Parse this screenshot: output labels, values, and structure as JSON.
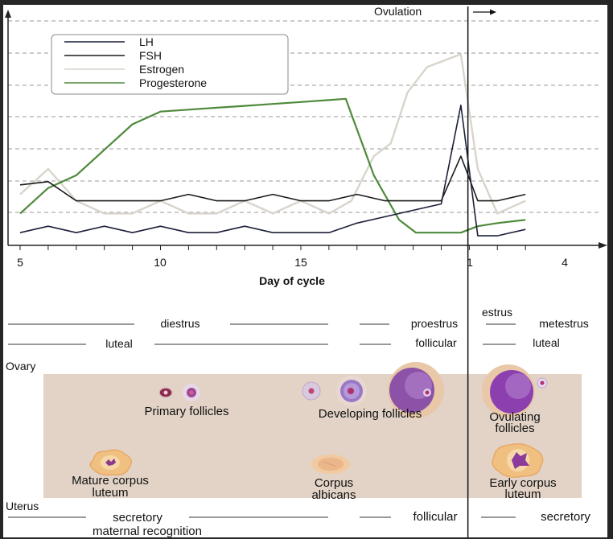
{
  "legend": {
    "items": [
      {
        "label": "LH",
        "color": "#1c1f3a"
      },
      {
        "label": "FSH",
        "color": "#1a1a1a"
      },
      {
        "label": "Estrogen",
        "color": "#d9d4cc"
      },
      {
        "label": "Progesterone",
        "color": "#4f8a3c"
      }
    ]
  },
  "ovulation_label": "Ovulation",
  "axis": {
    "xlabel": "Day of cycle",
    "ticks": [
      "5",
      "10",
      "15",
      "1",
      "4"
    ]
  },
  "phases": {
    "estrus": "estrus",
    "row1": [
      "diestrus",
      "proestrus",
      "metestrus"
    ],
    "row2": [
      "luteal",
      "follicular",
      "luteal"
    ]
  },
  "ovary": {
    "title": "Ovary",
    "primary": "Primary follicles",
    "developing": "Developing follicles",
    "ovulating_1": "Ovulating",
    "ovulating_2": "follicles",
    "mature_1": "Mature corpus",
    "mature_2": "luteum",
    "albicans_1": "Corpus",
    "albicans_2": "albicans",
    "early_1": "Early corpus",
    "early_2": "luteum"
  },
  "uterus": {
    "title": "Uterus",
    "secretory_left": "secretory",
    "follicular": "follicular",
    "secretory_right": "secretory",
    "maternal": "maternal recognition"
  },
  "chart_data": {
    "type": "line",
    "title": "",
    "xlabel": "Day of cycle",
    "ylabel": "",
    "x_tick_labels": [
      "5",
      "10",
      "15",
      "1",
      "4"
    ],
    "series": [
      {
        "name": "LH",
        "color": "#1c1f3a",
        "x": [
          5,
          6,
          7,
          8,
          9,
          10,
          11,
          12,
          13,
          14,
          15,
          16,
          17,
          18,
          19,
          20,
          20.7,
          21.3,
          22,
          23
        ],
        "y": [
          4,
          6,
          4,
          6,
          4,
          6,
          4,
          4,
          6,
          4,
          4,
          4,
          7,
          9,
          11,
          13,
          44,
          3,
          3,
          5
        ]
      },
      {
        "name": "FSH",
        "color": "#1a1a1a",
        "x": [
          5,
          6,
          7,
          8,
          9,
          10,
          11,
          12,
          13,
          14,
          15,
          16,
          17,
          18,
          19,
          20,
          20.7,
          21.3,
          22,
          23
        ],
        "y": [
          19,
          20,
          14,
          14,
          14,
          14,
          16,
          14,
          14,
          16,
          14,
          14,
          16,
          14,
          14,
          14,
          28,
          14,
          14,
          16
        ]
      },
      {
        "name": "Estrogen",
        "color": "#d9d4cc",
        "x": [
          5,
          6,
          7,
          8,
          9,
          10,
          11,
          12,
          13,
          14,
          15,
          16,
          16.8,
          17.6,
          18.2,
          18.8,
          19.5,
          20.7,
          21.3,
          22,
          23
        ],
        "y": [
          16,
          24,
          14,
          10,
          10,
          14,
          10,
          10,
          14,
          10,
          14,
          10,
          14,
          28,
          32,
          48,
          56,
          60,
          24,
          10,
          14
        ]
      },
      {
        "name": "Progesterone",
        "color": "#4f8a3c",
        "x": [
          5,
          6,
          7,
          8,
          9,
          10,
          11,
          12,
          13,
          14,
          15,
          16,
          16.6,
          17.6,
          18.5,
          19.1,
          20.7,
          21.3,
          22,
          23
        ],
        "y": [
          10,
          18,
          22,
          30,
          38,
          42,
          42.6,
          43.2,
          43.8,
          44.4,
          45,
          45.6,
          46,
          22,
          8,
          4,
          4,
          6,
          7,
          8
        ]
      }
    ],
    "ovulation_day": 20.95,
    "grid": "dashed horizontal",
    "legend_position": "top-left"
  }
}
